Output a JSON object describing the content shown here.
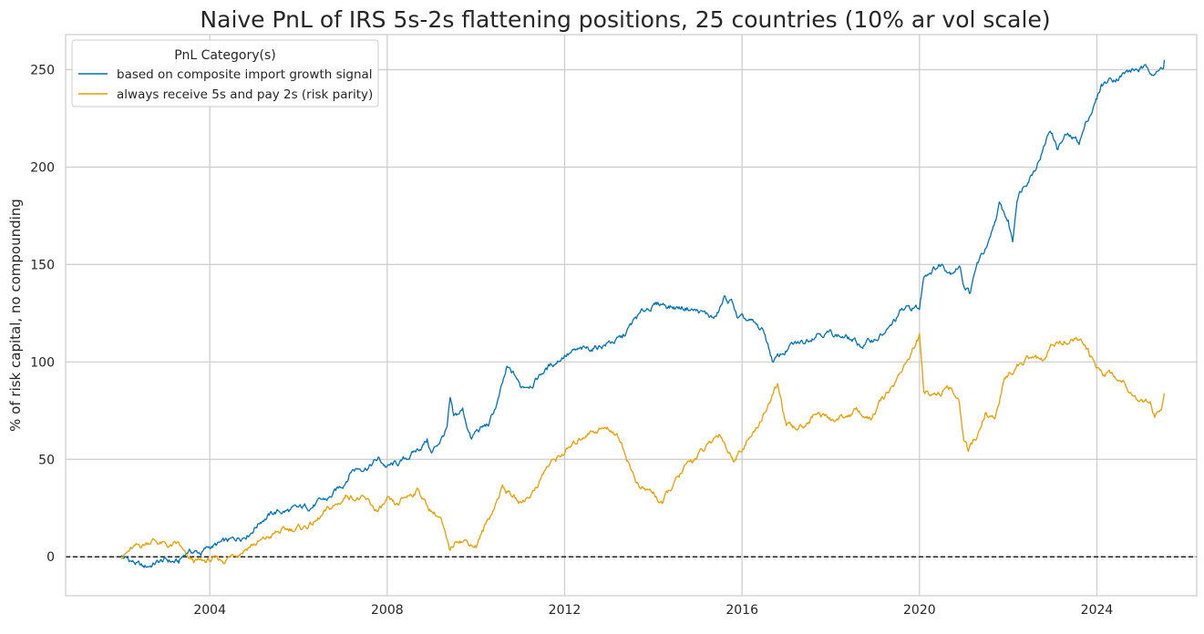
{
  "chart_data": {
    "type": "line",
    "title": "Naive PnL of IRS 5s-2s flattening positions, 25 countries (10% ar vol scale)",
    "xlabel": "",
    "ylabel": "% of risk capital, no compounding",
    "xlim": [
      2000.75,
      2026.25
    ],
    "ylim": [
      -20,
      268
    ],
    "xticks": [
      2004,
      2008,
      2012,
      2016,
      2020,
      2024
    ],
    "xtick_labels": [
      "2004",
      "2008",
      "2012",
      "2016",
      "2020",
      "2024"
    ],
    "yticks": [
      0,
      50,
      100,
      150,
      200,
      250
    ],
    "ytick_labels": [
      "0",
      "50",
      "100",
      "150",
      "200",
      "250"
    ],
    "grid": true,
    "zero_line": true,
    "legend": {
      "title": "PnL Category(s)",
      "position": "top-left"
    },
    "series": [
      {
        "name": "based on composite import growth signal",
        "color": "#0072b2",
        "points": [
          [
            2002.0,
            0
          ],
          [
            2002.3,
            -3
          ],
          [
            2002.5,
            -6
          ],
          [
            2002.8,
            -3
          ],
          [
            2003.0,
            -2
          ],
          [
            2003.3,
            -3
          ],
          [
            2003.5,
            3
          ],
          [
            2003.8,
            2
          ],
          [
            2004.0,
            5
          ],
          [
            2004.5,
            8
          ],
          [
            2004.9,
            13
          ],
          [
            2005.2,
            20
          ],
          [
            2005.5,
            23
          ],
          [
            2006.0,
            24
          ],
          [
            2006.5,
            28
          ],
          [
            2006.7,
            30
          ],
          [
            2007.0,
            37
          ],
          [
            2007.2,
            45
          ],
          [
            2007.6,
            47
          ],
          [
            2007.8,
            50
          ],
          [
            2008.0,
            46
          ],
          [
            2008.3,
            48
          ],
          [
            2008.7,
            55
          ],
          [
            2008.9,
            60
          ],
          [
            2009.0,
            53
          ],
          [
            2009.2,
            60
          ],
          [
            2009.35,
            66
          ],
          [
            2009.42,
            80
          ],
          [
            2009.5,
            70
          ],
          [
            2009.7,
            75
          ],
          [
            2009.9,
            60
          ],
          [
            2010.0,
            64
          ],
          [
            2010.3,
            68
          ],
          [
            2010.5,
            80
          ],
          [
            2010.7,
            96
          ],
          [
            2010.9,
            92
          ],
          [
            2011.0,
            87
          ],
          [
            2011.3,
            90
          ],
          [
            2011.5,
            95
          ],
          [
            2011.8,
            100
          ],
          [
            2012.0,
            104
          ],
          [
            2012.5,
            106
          ],
          [
            2013.0,
            110
          ],
          [
            2013.3,
            112
          ],
          [
            2013.6,
            122
          ],
          [
            2013.9,
            128
          ],
          [
            2014.2,
            130
          ],
          [
            2014.5,
            128
          ],
          [
            2014.8,
            128
          ],
          [
            2015.1,
            125
          ],
          [
            2015.4,
            122
          ],
          [
            2015.6,
            132
          ],
          [
            2015.8,
            130
          ],
          [
            2015.9,
            122
          ],
          [
            2016.2,
            120
          ],
          [
            2016.5,
            115
          ],
          [
            2016.7,
            100
          ],
          [
            2016.9,
            104
          ],
          [
            2017.1,
            108
          ],
          [
            2017.4,
            110
          ],
          [
            2017.7,
            116
          ],
          [
            2018.0,
            115
          ],
          [
            2018.4,
            112
          ],
          [
            2018.7,
            108
          ],
          [
            2019.0,
            112
          ],
          [
            2019.3,
            116
          ],
          [
            2019.6,
            126
          ],
          [
            2019.9,
            128
          ],
          [
            2020.0,
            127
          ],
          [
            2020.1,
            145
          ],
          [
            2020.3,
            148
          ],
          [
            2020.5,
            150
          ],
          [
            2020.7,
            147
          ],
          [
            2020.9,
            150
          ],
          [
            2021.0,
            140
          ],
          [
            2021.15,
            136
          ],
          [
            2021.3,
            150
          ],
          [
            2021.6,
            162
          ],
          [
            2021.8,
            180
          ],
          [
            2022.0,
            172
          ],
          [
            2022.1,
            162
          ],
          [
            2022.2,
            185
          ],
          [
            2022.4,
            193
          ],
          [
            2022.6,
            200
          ],
          [
            2022.8,
            210
          ],
          [
            2022.95,
            220
          ],
          [
            2023.1,
            210
          ],
          [
            2023.3,
            216
          ],
          [
            2023.6,
            213
          ],
          [
            2023.8,
            225
          ],
          [
            2024.0,
            235
          ],
          [
            2024.1,
            242
          ],
          [
            2024.3,
            245
          ],
          [
            2024.6,
            248
          ],
          [
            2024.9,
            250
          ],
          [
            2025.2,
            250
          ],
          [
            2025.4,
            249
          ],
          [
            2025.5,
            252
          ],
          [
            2025.52,
            255
          ]
        ]
      },
      {
        "name": "always receive 5s and pay 2s (risk parity)",
        "color": "#e69f00",
        "points": [
          [
            2002.0,
            0
          ],
          [
            2002.2,
            3
          ],
          [
            2002.5,
            6
          ],
          [
            2002.7,
            9
          ],
          [
            2002.9,
            7
          ],
          [
            2003.1,
            5
          ],
          [
            2003.3,
            6
          ],
          [
            2003.5,
            -2
          ],
          [
            2003.8,
            -3
          ],
          [
            2004.0,
            -2
          ],
          [
            2004.3,
            -2
          ],
          [
            2004.6,
            2
          ],
          [
            2004.9,
            6
          ],
          [
            2005.2,
            8
          ],
          [
            2005.5,
            12
          ],
          [
            2005.8,
            14
          ],
          [
            2006.1,
            15
          ],
          [
            2006.4,
            18
          ],
          [
            2006.7,
            24
          ],
          [
            2006.9,
            27
          ],
          [
            2007.1,
            32
          ],
          [
            2007.4,
            30
          ],
          [
            2007.6,
            27
          ],
          [
            2007.8,
            23
          ],
          [
            2008.0,
            28
          ],
          [
            2008.2,
            25
          ],
          [
            2008.4,
            30
          ],
          [
            2008.7,
            35
          ],
          [
            2008.9,
            26
          ],
          [
            2009.2,
            20
          ],
          [
            2009.4,
            2
          ],
          [
            2009.6,
            10
          ],
          [
            2009.8,
            8
          ],
          [
            2010.0,
            6
          ],
          [
            2010.2,
            15
          ],
          [
            2010.4,
            25
          ],
          [
            2010.6,
            36
          ],
          [
            2010.8,
            32
          ],
          [
            2011.0,
            27
          ],
          [
            2011.3,
            34
          ],
          [
            2011.6,
            46
          ],
          [
            2011.9,
            52
          ],
          [
            2012.2,
            57
          ],
          [
            2012.5,
            64
          ],
          [
            2012.8,
            66
          ],
          [
            2013.1,
            65
          ],
          [
            2013.3,
            58
          ],
          [
            2013.5,
            45
          ],
          [
            2013.7,
            35
          ],
          [
            2014.0,
            33
          ],
          [
            2014.2,
            27
          ],
          [
            2014.4,
            35
          ],
          [
            2014.7,
            45
          ],
          [
            2015.0,
            52
          ],
          [
            2015.3,
            58
          ],
          [
            2015.5,
            64
          ],
          [
            2015.7,
            54
          ],
          [
            2015.8,
            50
          ],
          [
            2016.1,
            60
          ],
          [
            2016.3,
            64
          ],
          [
            2016.5,
            74
          ],
          [
            2016.8,
            88
          ],
          [
            2017.0,
            67
          ],
          [
            2017.2,
            65
          ],
          [
            2017.5,
            70
          ],
          [
            2017.7,
            75
          ],
          [
            2018.0,
            70
          ],
          [
            2018.3,
            72
          ],
          [
            2018.6,
            75
          ],
          [
            2018.9,
            70
          ],
          [
            2019.1,
            78
          ],
          [
            2019.4,
            88
          ],
          [
            2019.7,
            100
          ],
          [
            2019.9,
            108
          ],
          [
            2020.0,
            113
          ],
          [
            2020.1,
            82
          ],
          [
            2020.3,
            85
          ],
          [
            2020.5,
            84
          ],
          [
            2020.7,
            86
          ],
          [
            2020.9,
            78
          ],
          [
            2021.0,
            60
          ],
          [
            2021.1,
            54
          ],
          [
            2021.3,
            60
          ],
          [
            2021.5,
            75
          ],
          [
            2021.7,
            70
          ],
          [
            2021.9,
            90
          ],
          [
            2022.2,
            98
          ],
          [
            2022.5,
            102
          ],
          [
            2022.8,
            100
          ],
          [
            2023.0,
            108
          ],
          [
            2023.3,
            112
          ],
          [
            2023.6,
            111
          ],
          [
            2023.8,
            105
          ],
          [
            2024.0,
            96
          ],
          [
            2024.3,
            94
          ],
          [
            2024.6,
            90
          ],
          [
            2024.9,
            82
          ],
          [
            2025.2,
            80
          ],
          [
            2025.3,
            72
          ],
          [
            2025.45,
            75
          ],
          [
            2025.52,
            84
          ]
        ]
      }
    ]
  }
}
